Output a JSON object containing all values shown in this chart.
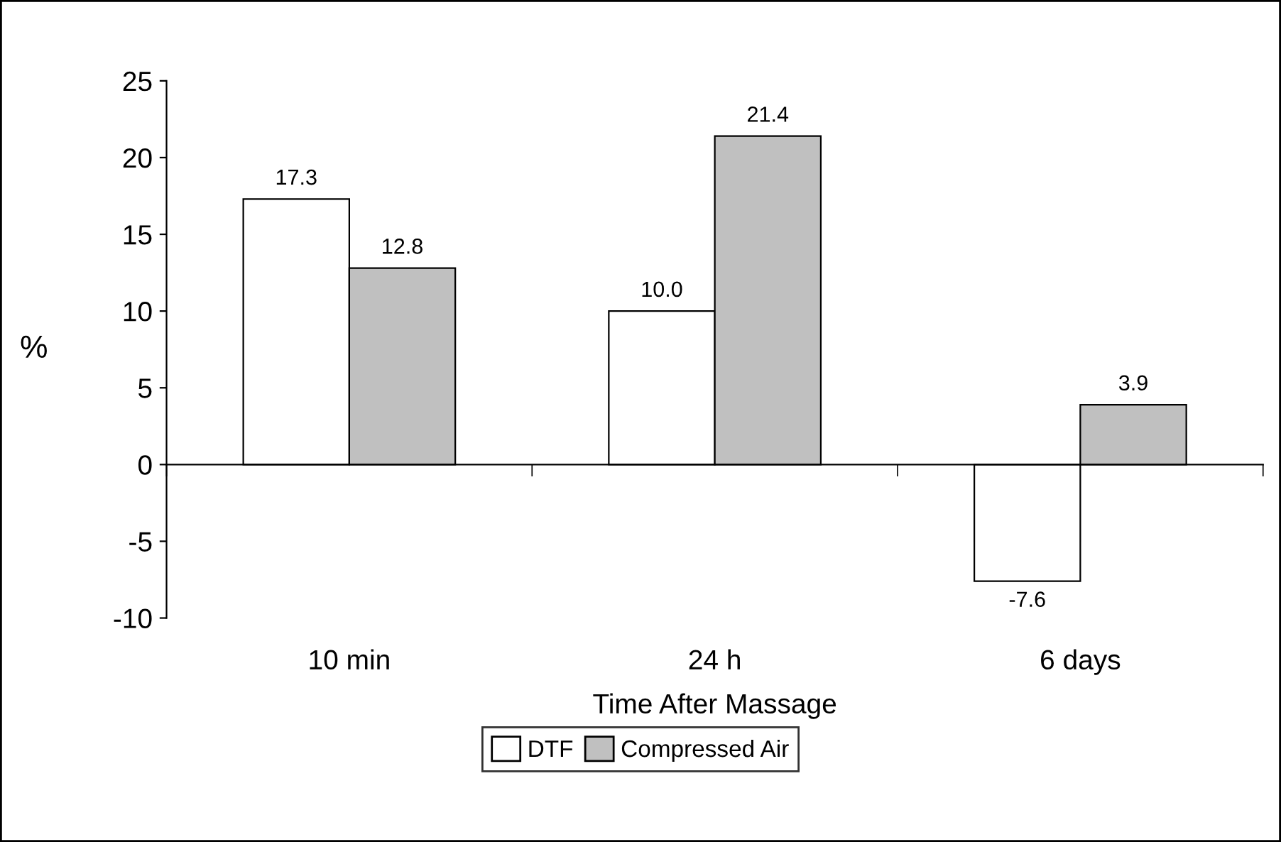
{
  "chart_data": {
    "type": "bar",
    "xlabel": "Time After Massage",
    "ylabel": "%",
    "categories": [
      "10 min",
      "24 h",
      "6 days"
    ],
    "series": [
      {
        "name": "DTF",
        "color": "#ffffff",
        "values": [
          17.3,
          10.0,
          -7.6
        ],
        "value_labels": [
          "17.3",
          "10.0",
          "-7.6"
        ]
      },
      {
        "name": "Compressed Air",
        "color": "#c0c0c0",
        "values": [
          12.8,
          21.4,
          3.9
        ],
        "value_labels": [
          "12.8",
          "21.4",
          "3.9"
        ]
      }
    ],
    "ylim": [
      -10,
      25
    ],
    "yticks": [
      {
        "value": -10,
        "label": "-10"
      },
      {
        "value": -5,
        "label": "-5"
      },
      0,
      5,
      10,
      15,
      20,
      25
    ],
    "legend": "bottom"
  }
}
